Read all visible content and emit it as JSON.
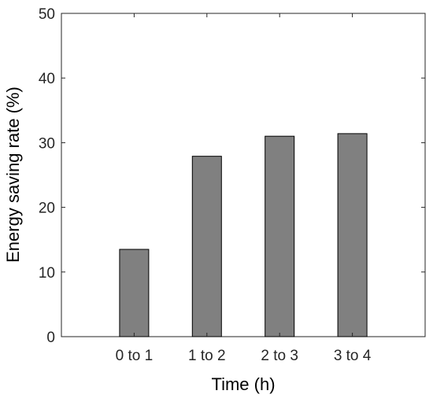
{
  "chart_data": {
    "type": "bar",
    "title": "",
    "xlabel": "Time (h)",
    "ylabel": "Energy saving rate (%)",
    "categories": [
      "0 to 1",
      "1 to 2",
      "2 to 3",
      "3 to 4"
    ],
    "values": [
      13.5,
      27.9,
      31.0,
      31.4
    ],
    "ylim": [
      0,
      50
    ],
    "yticks": [
      0,
      10,
      20,
      30,
      40,
      50
    ],
    "ytick_labels": [
      "0",
      "10",
      "20",
      "30",
      "40",
      "50"
    ],
    "grid": false,
    "legend": "none",
    "colors": {
      "bar": "#808080",
      "bar_edge": "#000000",
      "axis": "#262626"
    }
  }
}
